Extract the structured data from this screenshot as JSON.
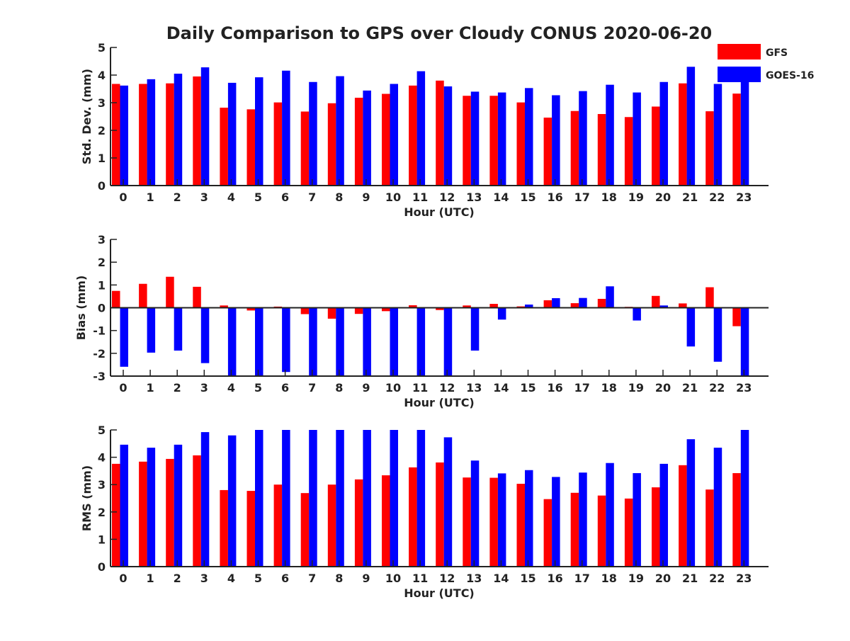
{
  "chart_data": [
    {
      "type": "bar",
      "title": "Daily Comparison to GPS over Cloudy CONUS 2020-06-20",
      "xlabel": "Hour (UTC)",
      "ylabel": "Std. Dev. (mm)",
      "ylim": [
        0,
        5
      ],
      "yticks": [
        0,
        1,
        2,
        3,
        4,
        5
      ],
      "categories": [
        "0",
        "1",
        "2",
        "3",
        "4",
        "5",
        "6",
        "7",
        "8",
        "9",
        "10",
        "11",
        "12",
        "13",
        "14",
        "15",
        "16",
        "17",
        "18",
        "19",
        "20",
        "21",
        "22",
        "23"
      ],
      "legend": {
        "placement": "top-right-outside",
        "entries": [
          "GFS",
          "GOES-16"
        ]
      },
      "series": [
        {
          "name": "GFS",
          "color": "#ff0000",
          "values": [
            3.68,
            3.68,
            3.7,
            3.95,
            2.82,
            2.76,
            3.01,
            2.68,
            2.98,
            3.18,
            3.32,
            3.62,
            3.8,
            3.25,
            3.25,
            3.01,
            2.46,
            2.7,
            2.59,
            2.48,
            2.86,
            3.7,
            2.69,
            3.33
          ]
        },
        {
          "name": "GOES-16",
          "color": "#0000ff",
          "values": [
            3.62,
            3.85,
            4.05,
            4.28,
            3.72,
            3.92,
            4.16,
            3.75,
            3.96,
            3.44,
            3.68,
            4.14,
            3.59,
            3.4,
            3.37,
            3.53,
            3.27,
            3.42,
            3.65,
            3.37,
            3.75,
            4.3,
            3.68,
            3.9
          ]
        }
      ]
    },
    {
      "type": "bar",
      "xlabel": "Hour (UTC)",
      "ylabel": "Bias (mm)",
      "ylim": [
        -3,
        3
      ],
      "yticks": [
        -3,
        -2,
        -1,
        0,
        1,
        2,
        3
      ],
      "categories": [
        "0",
        "1",
        "2",
        "3",
        "4",
        "5",
        "6",
        "7",
        "8",
        "9",
        "10",
        "11",
        "12",
        "13",
        "14",
        "15",
        "16",
        "17",
        "18",
        "19",
        "20",
        "21",
        "22",
        "23"
      ],
      "series": [
        {
          "name": "GFS",
          "color": "#ff0000",
          "values": [
            0.74,
            1.05,
            1.36,
            0.92,
            0.1,
            -0.12,
            0.05,
            -0.28,
            -0.48,
            -0.27,
            -0.15,
            0.11,
            -0.1,
            0.1,
            0.17,
            0.06,
            0.33,
            0.2,
            0.39,
            0.04,
            0.52,
            0.19,
            0.9,
            -0.81
          ]
        },
        {
          "name": "GOES-16",
          "color": "#0000ff",
          "values": [
            -2.59,
            -1.97,
            -1.88,
            -2.43,
            -3.0,
            -3.0,
            -2.82,
            -3.0,
            -3.0,
            -3.0,
            -3.0,
            -2.98,
            -3.0,
            -1.88,
            -0.52,
            0.14,
            0.42,
            0.43,
            0.94,
            -0.56,
            0.1,
            -1.7,
            -2.37,
            -3.0
          ]
        }
      ]
    },
    {
      "type": "bar",
      "xlabel": "Hour (UTC)",
      "ylabel": "RMS (mm)",
      "ylim": [
        0,
        5
      ],
      "yticks": [
        0,
        1,
        2,
        3,
        4,
        5
      ],
      "categories": [
        "0",
        "1",
        "2",
        "3",
        "4",
        "5",
        "6",
        "7",
        "8",
        "9",
        "10",
        "11",
        "12",
        "13",
        "14",
        "15",
        "16",
        "17",
        "18",
        "19",
        "20",
        "21",
        "22",
        "23"
      ],
      "series": [
        {
          "name": "GFS",
          "color": "#ff0000",
          "values": [
            3.76,
            3.84,
            3.94,
            4.07,
            2.8,
            2.77,
            3.0,
            2.69,
            3.0,
            3.19,
            3.34,
            3.63,
            3.81,
            3.26,
            3.25,
            3.03,
            2.47,
            2.7,
            2.6,
            2.49,
            2.9,
            3.71,
            2.82,
            3.42
          ]
        },
        {
          "name": "GOES-16",
          "color": "#0000ff",
          "values": [
            4.46,
            4.35,
            4.46,
            4.92,
            4.8,
            5.0,
            5.0,
            5.0,
            5.0,
            5.0,
            5.0,
            5.0,
            4.73,
            3.88,
            3.41,
            3.53,
            3.28,
            3.44,
            3.79,
            3.42,
            3.76,
            4.66,
            4.35,
            5.0
          ]
        }
      ]
    }
  ]
}
